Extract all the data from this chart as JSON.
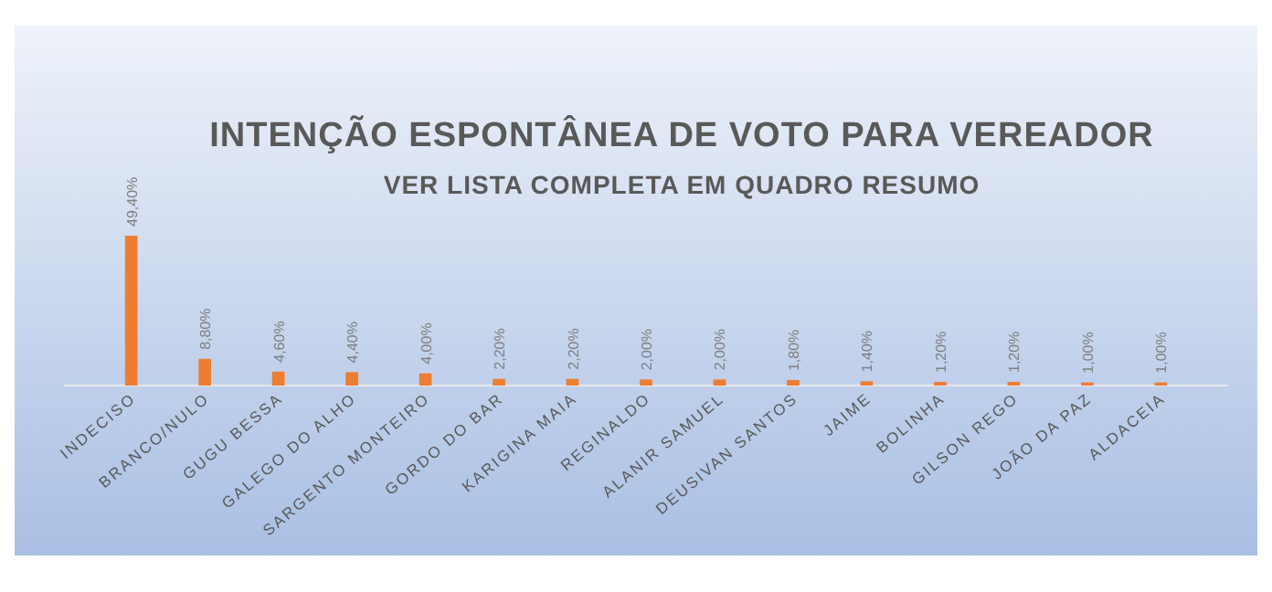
{
  "chart_data": {
    "type": "bar",
    "title": "INTENÇÃO ESPONTÂNEA DE VOTO PARA VEREADOR",
    "subtitle": "VER LISTA COMPLETA  EM QUADRO RESUMO",
    "categories": [
      "INDECISO",
      "BRANCO/NULO",
      "GUGU BESSA",
      "GALEGO DO ALHO",
      "SARGENTO MONTEIRO",
      "GORDO DO BAR",
      "KARIGINA MAIA",
      "REGINALDO",
      "ALANIR SAMUEL",
      "DEUSIVAN SANTOS",
      "JAIME",
      "BOLINHA",
      "GILSON REGO",
      "JOÃO DA PAZ",
      "ALDACEIA"
    ],
    "values": [
      49.4,
      8.8,
      4.6,
      4.4,
      4.0,
      2.2,
      2.2,
      2.0,
      2.0,
      1.8,
      1.4,
      1.2,
      1.2,
      1.0,
      1.0
    ],
    "value_labels": [
      "49,40%",
      "8,80%",
      "4,60%",
      "4,40%",
      "4,00%",
      "2,20%",
      "2,20%",
      "2,00%",
      "2,00%",
      "1,80%",
      "1,40%",
      "1,20%",
      "1,20%",
      "1,00%",
      "1,00%"
    ],
    "color": "#ed7d31"
  }
}
